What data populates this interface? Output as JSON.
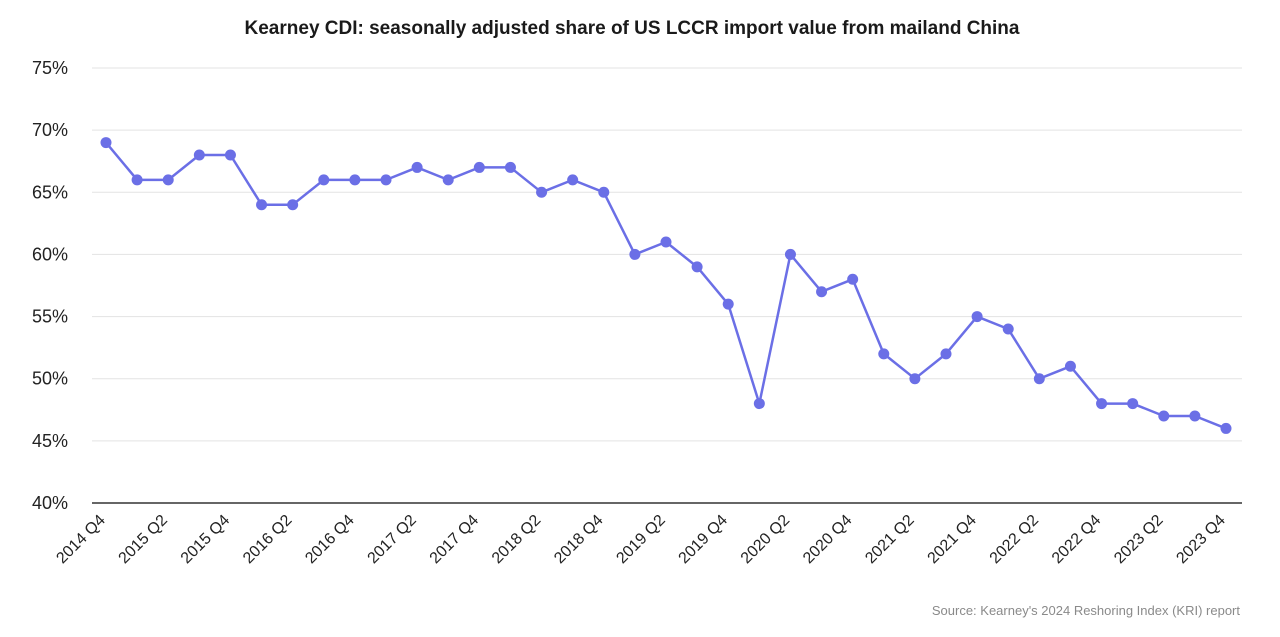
{
  "chart_data": {
    "type": "line",
    "title": "Kearney CDI: seasonally adjusted share of US LCCR import value from mailand China",
    "xlabel": "",
    "ylabel": "",
    "ylim": [
      40,
      75
    ],
    "y_ticks": [
      "40%",
      "45%",
      "50%",
      "55%",
      "60%",
      "65%",
      "70%",
      "75%"
    ],
    "y_tick_values": [
      40,
      45,
      50,
      55,
      60,
      65,
      70,
      75
    ],
    "grid": true,
    "x_tick_labels": [
      "2014 Q4",
      "2015 Q2",
      "2015 Q4",
      "2016 Q2",
      "2016 Q4",
      "2017 Q2",
      "2017 Q4",
      "2018 Q2",
      "2018 Q4",
      "2019 Q2",
      "2019 Q4",
      "2020 Q2",
      "2020 Q4",
      "2021 Q2",
      "2021 Q4",
      "2022 Q2",
      "2022 Q4",
      "2023 Q2",
      "2023 Q4"
    ],
    "x": [
      "2014 Q4",
      "2015 Q1",
      "2015 Q2",
      "2015 Q3",
      "2015 Q4",
      "2016 Q1",
      "2016 Q2",
      "2016 Q3",
      "2016 Q4",
      "2017 Q1",
      "2017 Q2",
      "2017 Q3",
      "2017 Q4",
      "2018 Q1",
      "2018 Q2",
      "2018 Q3",
      "2018 Q4",
      "2019 Q1",
      "2019 Q2",
      "2019 Q3",
      "2019 Q4",
      "2020 Q1",
      "2020 Q2",
      "2020 Q3",
      "2020 Q4",
      "2021 Q1",
      "2021 Q2",
      "2021 Q3",
      "2021 Q4",
      "2022 Q1",
      "2022 Q2",
      "2022 Q3",
      "2022 Q4",
      "2023 Q1",
      "2023 Q2",
      "2023 Q3",
      "2023 Q4"
    ],
    "series": [
      {
        "name": "Share of US LCCR import value from mainland China",
        "color": "#6b6fe6",
        "values": [
          69,
          66,
          66,
          68,
          68,
          64,
          64,
          66,
          66,
          66,
          67,
          66,
          67,
          67,
          65,
          66,
          65,
          60,
          61,
          59,
          56,
          48,
          60,
          57,
          58,
          52,
          50,
          52,
          55,
          54,
          50,
          51,
          48,
          48,
          47,
          47,
          46
        ]
      }
    ],
    "source": "Source: Kearney's 2024 Reshoring Index (KRI) report"
  },
  "colors": {
    "series": "#6b6fe6",
    "grid": "#e3e3e3",
    "axis": "#333333",
    "text": "#222222",
    "source": "#8a8a8a"
  }
}
